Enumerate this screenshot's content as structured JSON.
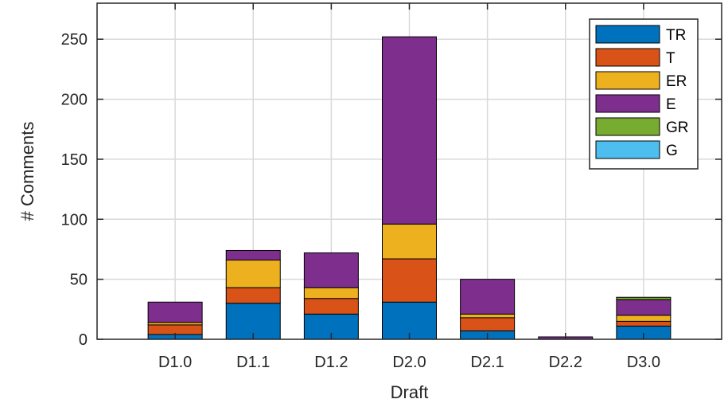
{
  "chart_data": {
    "type": "bar",
    "stacked": true,
    "xlabel": "Draft",
    "ylabel": "# Comments",
    "categories": [
      "D1.0",
      "D1.1",
      "D1.2",
      "D2.0",
      "D2.1",
      "D2.2",
      "D3.0"
    ],
    "ylim": [
      0,
      280
    ],
    "yticks": [
      0,
      50,
      100,
      150,
      200,
      250
    ],
    "grid": true,
    "legend_position": "top-right",
    "series": [
      {
        "name": "TR",
        "color": "#0072BD",
        "values": [
          4,
          30,
          21,
          31,
          7,
          0,
          11
        ]
      },
      {
        "name": "T",
        "color": "#D95319",
        "values": [
          8,
          13,
          13,
          36,
          11,
          0,
          4
        ]
      },
      {
        "name": "ER",
        "color": "#EDB120",
        "values": [
          2,
          23,
          9,
          29,
          3,
          0,
          5
        ]
      },
      {
        "name": "E",
        "color": "#7E2F8E",
        "values": [
          17,
          8,
          29,
          156,
          29,
          2,
          13
        ]
      },
      {
        "name": "GR",
        "color": "#77AC30",
        "values": [
          0,
          0,
          0,
          0,
          0,
          0,
          2
        ]
      },
      {
        "name": "G",
        "color": "#4DBEEE",
        "values": [
          0,
          0,
          0,
          0,
          0,
          0,
          0
        ]
      }
    ]
  }
}
